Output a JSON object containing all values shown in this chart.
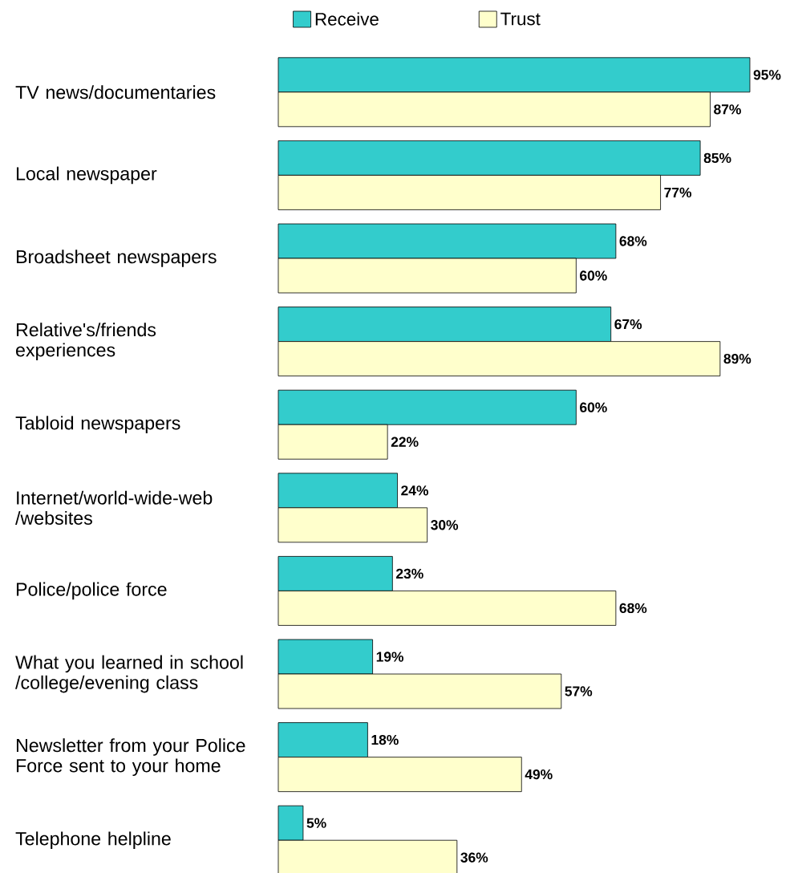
{
  "chart_data": {
    "type": "bar",
    "orientation": "horizontal",
    "legend": "top",
    "categories": [
      "TV news/documentaries",
      "Local newspaper",
      "Broadsheet newspapers",
      "Relative's/friends experiences",
      "Tabloid newspapers",
      "Internet/world-wide-web /websites",
      "Police/police force",
      "What you learned in school /college/evening class",
      "Newsletter from your Police Force sent to your home",
      "Telephone helpline"
    ],
    "xlim": [
      0,
      95
    ],
    "series": [
      {
        "name": "Receive",
        "color": "#33cccc",
        "values": [
          95,
          85,
          68,
          67,
          60,
          24,
          23,
          19,
          18,
          5
        ],
        "value_labels": [
          "95%",
          "85%",
          "68%",
          "67%",
          "60%",
          "24%",
          "23%",
          "19%",
          "18%",
          "5%"
        ]
      },
      {
        "name": "Trust",
        "color": "#ffffcc",
        "values": [
          87,
          77,
          60,
          89,
          22,
          30,
          68,
          57,
          49,
          36
        ],
        "value_labels": [
          "87%",
          "77%",
          "60%",
          "89%",
          "22%",
          "30%",
          "68%",
          "57%",
          "49%",
          "36%"
        ]
      }
    ]
  }
}
